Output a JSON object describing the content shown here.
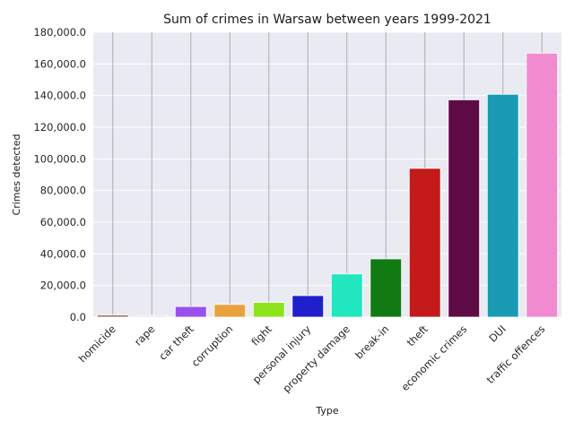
{
  "chart_data": {
    "type": "bar",
    "title": "Sum of crimes in Warsaw between years 1999-2021",
    "xlabel": "Type",
    "ylabel": "Crimes detected",
    "ylim": [
      0,
      180000
    ],
    "yticks": [
      "0.0",
      "20,000.0",
      "40,000.0",
      "60,000.0",
      "80,000.0",
      "100,000.0",
      "120,000.0",
      "140,000.0",
      "160,000.0",
      "180,000.0"
    ],
    "grid": true,
    "categories": [
      "homicide",
      "rape",
      "car theft",
      "corruption",
      "fight",
      "personal injury",
      "property damage",
      "break-in",
      "theft",
      "economic crimes",
      "DUI",
      "traffic offences"
    ],
    "values": [
      1400,
      1200,
      6700,
      8000,
      9300,
      13600,
      27300,
      36800,
      94000,
      137300,
      140800,
      166800
    ],
    "colors": [
      "#9c7b6a",
      "#e6e0f5",
      "#9a4ff0",
      "#e8a23c",
      "#8ee31c",
      "#1f1fcc",
      "#21e6bf",
      "#117a13",
      "#c41a1a",
      "#5e0b45",
      "#1a9ab3",
      "#f08bd0"
    ]
  }
}
